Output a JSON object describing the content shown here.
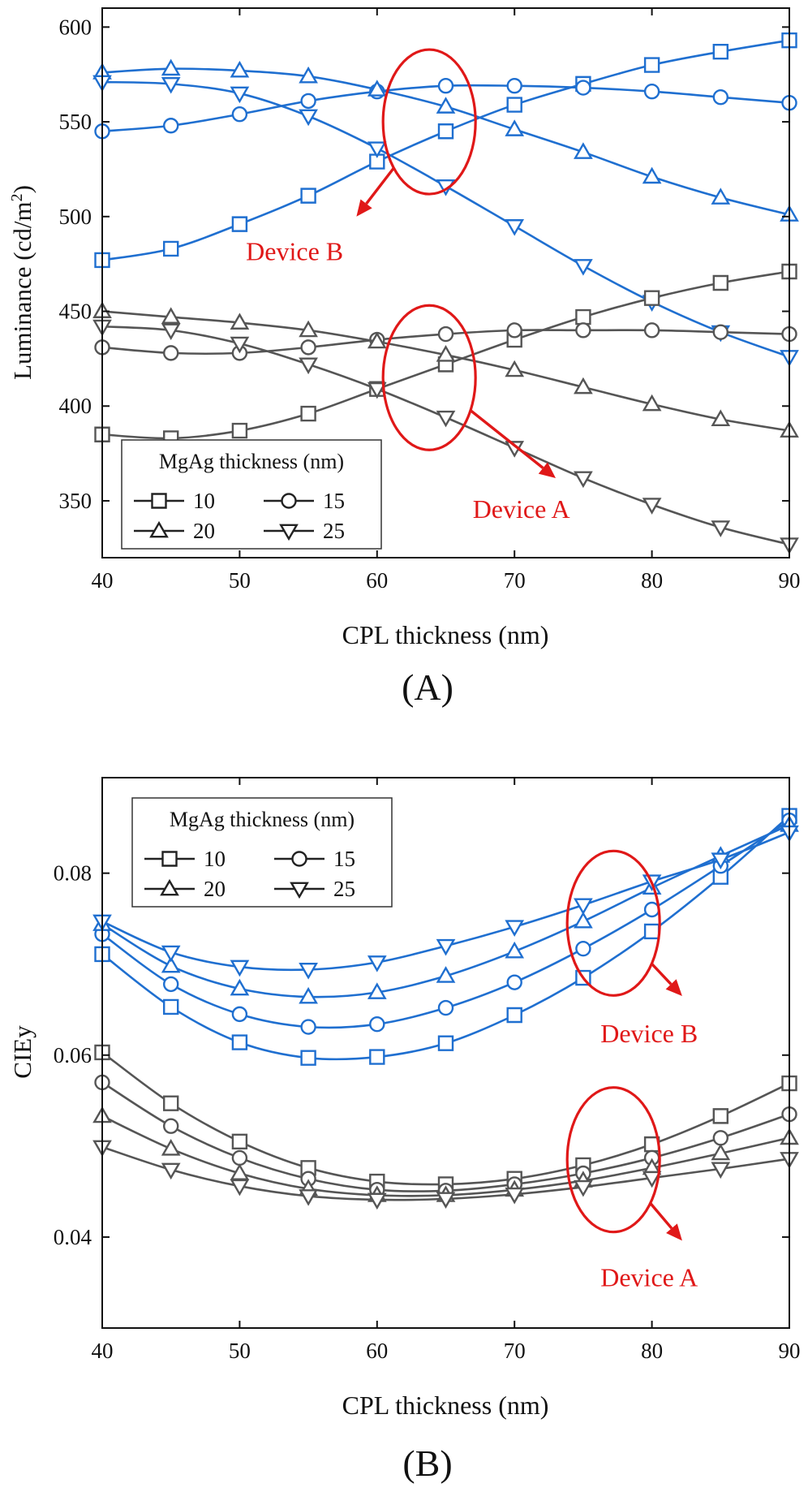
{
  "chart_data": [
    {
      "type": "line",
      "panel_label": "(A)",
      "xlabel": "CPL thickness (nm)",
      "ylabel_main": "Luminance (cd/m",
      "ylabel_sup": "2",
      "ylabel_close": ")",
      "xlim": [
        40,
        90
      ],
      "ylim": [
        320,
        610
      ],
      "xticks": [
        40,
        50,
        60,
        70,
        80,
        90
      ],
      "yticks": [
        350,
        400,
        450,
        500,
        550,
        600
      ],
      "x": [
        40,
        45,
        50,
        55,
        60,
        65,
        70,
        75,
        80,
        85,
        90
      ],
      "legend_title": "MgAg thickness (nm)",
      "legend_entries": [
        {
          "label": "10",
          "marker": "square"
        },
        {
          "label": "15",
          "marker": "circle"
        },
        {
          "label": "20",
          "marker": "triangle-up"
        },
        {
          "label": "25",
          "marker": "triangle-down"
        }
      ],
      "annotations": [
        {
          "text": "Device B",
          "cx": 63.8,
          "cy": 550,
          "arrow_to": [
            58.5,
            500
          ],
          "text_at": [
            54,
            477
          ],
          "color": "#e01818"
        },
        {
          "text": "Device A",
          "cx": 63.8,
          "cy": 415,
          "arrow_to": [
            73,
            362
          ],
          "text_at": [
            70.5,
            341
          ],
          "color": "#e01818"
        }
      ],
      "series": [
        {
          "group": "Device B",
          "name": "10",
          "marker": "square",
          "color": "#1f6fd0",
          "values": [
            477,
            483,
            496,
            511,
            529,
            545,
            559,
            570,
            580,
            587,
            593
          ]
        },
        {
          "group": "Device B",
          "name": "15",
          "marker": "circle",
          "color": "#1f6fd0",
          "values": [
            545,
            548,
            554,
            561,
            566,
            569,
            569,
            568,
            566,
            563,
            560
          ]
        },
        {
          "group": "Device B",
          "name": "20",
          "marker": "triangle-up",
          "color": "#1f6fd0",
          "values": [
            576,
            578,
            577,
            574,
            567,
            558,
            546,
            534,
            521,
            510,
            501
          ]
        },
        {
          "group": "Device B",
          "name": "25",
          "marker": "triangle-down",
          "color": "#1f6fd0",
          "values": [
            571,
            570,
            565,
            553,
            536,
            516,
            495,
            474,
            455,
            439,
            426
          ]
        },
        {
          "group": "Device A",
          "name": "10",
          "marker": "square",
          "color": "#555555",
          "values": [
            385,
            383,
            387,
            396,
            409,
            422,
            435,
            447,
            457,
            465,
            471
          ]
        },
        {
          "group": "Device A",
          "name": "15",
          "marker": "circle",
          "color": "#555555",
          "values": [
            431,
            428,
            428,
            431,
            435,
            438,
            440,
            440,
            440,
            439,
            438
          ]
        },
        {
          "group": "Device A",
          "name": "20",
          "marker": "triangle-up",
          "color": "#555555",
          "values": [
            450,
            447,
            444,
            440,
            434,
            427,
            419,
            410,
            401,
            393,
            387
          ]
        },
        {
          "group": "Device A",
          "name": "25",
          "marker": "triangle-down",
          "color": "#555555",
          "values": [
            442,
            440,
            433,
            422,
            409,
            394,
            378,
            362,
            348,
            336,
            327
          ]
        }
      ]
    },
    {
      "type": "line",
      "panel_label": "(B)",
      "xlabel": "CPL thickness (nm)",
      "ylabel_main": "CIEy",
      "ylabel_sup": "",
      "ylabel_close": "",
      "xlim": [
        40,
        90
      ],
      "ylim": [
        0.03,
        0.0905
      ],
      "xticks": [
        40,
        50,
        60,
        70,
        80,
        90
      ],
      "yticks": [
        0.04,
        0.06,
        0.08
      ],
      "ytick_labels": [
        "0.04",
        "0.06",
        "0.08"
      ],
      "x": [
        40,
        45,
        50,
        55,
        60,
        65,
        70,
        75,
        80,
        85,
        90
      ],
      "legend_title": "MgAg thickness (nm)",
      "legend_entries": [
        {
          "label": "10",
          "marker": "square"
        },
        {
          "label": "15",
          "marker": "circle"
        },
        {
          "label": "20",
          "marker": "triangle-up"
        },
        {
          "label": "25",
          "marker": "triangle-down"
        }
      ],
      "annotations": [
        {
          "text": "Device B",
          "cx": 77.2,
          "cy": 0.0745,
          "arrow_to": [
            82.2,
            0.0665
          ],
          "text_at": [
            79.8,
            0.0614
          ],
          "color": "#e01818"
        },
        {
          "text": "Device A",
          "cx": 77.2,
          "cy": 0.0485,
          "arrow_to": [
            82.2,
            0.0396
          ],
          "text_at": [
            79.8,
            0.0346
          ],
          "color": "#e01818"
        }
      ],
      "series": [
        {
          "group": "Device B",
          "name": "10",
          "marker": "square",
          "color": "#1f6fd0",
          "values": [
            0.0711,
            0.0653,
            0.0614,
            0.0597,
            0.0598,
            0.0613,
            0.0644,
            0.0685,
            0.0736,
            0.0796,
            0.0863
          ]
        },
        {
          "group": "Device B",
          "name": "15",
          "marker": "circle",
          "color": "#1f6fd0",
          "values": [
            0.0733,
            0.0678,
            0.0645,
            0.0631,
            0.0634,
            0.0652,
            0.068,
            0.0717,
            0.076,
            0.0808,
            0.0858
          ]
        },
        {
          "group": "Device B",
          "name": "20",
          "marker": "triangle-up",
          "color": "#1f6fd0",
          "values": [
            0.0744,
            0.0698,
            0.0673,
            0.0664,
            0.0669,
            0.0687,
            0.0714,
            0.0747,
            0.0784,
            0.0819,
            0.0853
          ]
        },
        {
          "group": "Device B",
          "name": "25",
          "marker": "triangle-down",
          "color": "#1f6fd0",
          "values": [
            0.0747,
            0.0713,
            0.0697,
            0.0694,
            0.0702,
            0.072,
            0.0741,
            0.0765,
            0.0791,
            0.0815,
            0.0845
          ]
        },
        {
          "group": "Device A",
          "name": "10",
          "marker": "square",
          "color": "#555555",
          "values": [
            0.0603,
            0.0547,
            0.0505,
            0.0476,
            0.0461,
            0.0458,
            0.0464,
            0.0479,
            0.0502,
            0.0533,
            0.0569
          ]
        },
        {
          "group": "Device A",
          "name": "15",
          "marker": "circle",
          "color": "#555555",
          "values": [
            0.057,
            0.0522,
            0.0487,
            0.0464,
            0.0452,
            0.0451,
            0.0458,
            0.047,
            0.0487,
            0.0509,
            0.0535
          ]
        },
        {
          "group": "Device A",
          "name": "20",
          "marker": "triangle-up",
          "color": "#555555",
          "values": [
            0.0533,
            0.0497,
            0.047,
            0.0453,
            0.0446,
            0.0446,
            0.0452,
            0.0462,
            0.0476,
            0.0492,
            0.0509
          ]
        },
        {
          "group": "Device A",
          "name": "25",
          "marker": "triangle-down",
          "color": "#555555",
          "values": [
            0.0499,
            0.0474,
            0.0456,
            0.0445,
            0.0441,
            0.0442,
            0.0447,
            0.0455,
            0.0465,
            0.0475,
            0.0486
          ]
        }
      ]
    }
  ]
}
